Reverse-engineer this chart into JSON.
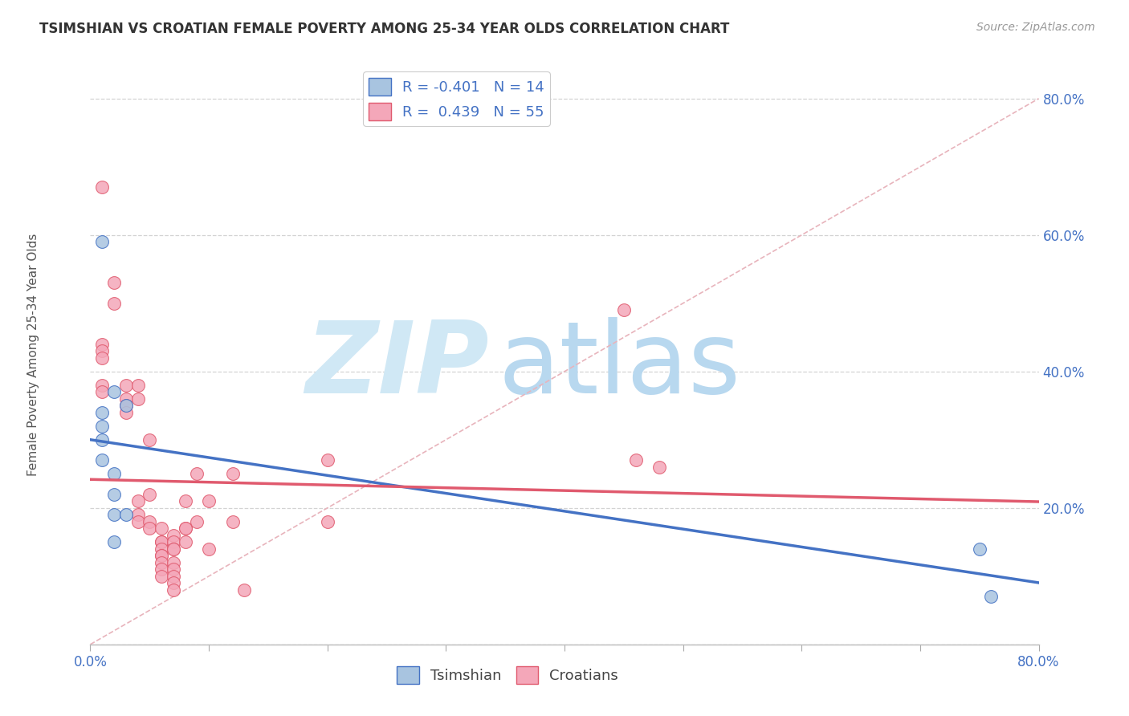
{
  "title": "TSIMSHIAN VS CROATIAN FEMALE POVERTY AMONG 25-34 YEAR OLDS CORRELATION CHART",
  "source": "Source: ZipAtlas.com",
  "ylabel_label": "Female Poverty Among 25-34 Year Olds",
  "tsimshian_r": -0.401,
  "tsimshian_n": 14,
  "croatian_r": 0.439,
  "croatian_n": 55,
  "xlim": [
    0.0,
    0.8
  ],
  "ylim": [
    0.0,
    0.85
  ],
  "xticks": [
    0.0,
    0.1,
    0.2,
    0.3,
    0.4,
    0.5,
    0.6,
    0.7,
    0.8
  ],
  "yticks": [
    0.0,
    0.2,
    0.4,
    0.6,
    0.8
  ],
  "tsimshian_color": "#a8c4e0",
  "croatian_color": "#f4a7b9",
  "tsimshian_line_color": "#4472c4",
  "croatian_line_color": "#e05a6e",
  "diagonal_color": "#c8c8c8",
  "tsimshian_points": [
    [
      0.01,
      0.59
    ],
    [
      0.01,
      0.34
    ],
    [
      0.01,
      0.32
    ],
    [
      0.01,
      0.3
    ],
    [
      0.01,
      0.27
    ],
    [
      0.02,
      0.37
    ],
    [
      0.02,
      0.25
    ],
    [
      0.02,
      0.22
    ],
    [
      0.02,
      0.19
    ],
    [
      0.02,
      0.15
    ],
    [
      0.03,
      0.35
    ],
    [
      0.03,
      0.19
    ],
    [
      0.75,
      0.14
    ],
    [
      0.76,
      0.07
    ]
  ],
  "croatian_points": [
    [
      0.01,
      0.67
    ],
    [
      0.02,
      0.53
    ],
    [
      0.02,
      0.5
    ],
    [
      0.01,
      0.44
    ],
    [
      0.01,
      0.43
    ],
    [
      0.01,
      0.42
    ],
    [
      0.01,
      0.38
    ],
    [
      0.01,
      0.37
    ],
    [
      0.03,
      0.38
    ],
    [
      0.03,
      0.36
    ],
    [
      0.03,
      0.35
    ],
    [
      0.03,
      0.34
    ],
    [
      0.04,
      0.38
    ],
    [
      0.04,
      0.36
    ],
    [
      0.04,
      0.21
    ],
    [
      0.04,
      0.19
    ],
    [
      0.04,
      0.18
    ],
    [
      0.05,
      0.3
    ],
    [
      0.05,
      0.22
    ],
    [
      0.05,
      0.18
    ],
    [
      0.05,
      0.17
    ],
    [
      0.06,
      0.17
    ],
    [
      0.06,
      0.15
    ],
    [
      0.06,
      0.15
    ],
    [
      0.06,
      0.14
    ],
    [
      0.06,
      0.13
    ],
    [
      0.06,
      0.13
    ],
    [
      0.06,
      0.12
    ],
    [
      0.06,
      0.11
    ],
    [
      0.06,
      0.1
    ],
    [
      0.07,
      0.16
    ],
    [
      0.07,
      0.15
    ],
    [
      0.07,
      0.14
    ],
    [
      0.07,
      0.14
    ],
    [
      0.07,
      0.12
    ],
    [
      0.07,
      0.11
    ],
    [
      0.07,
      0.1
    ],
    [
      0.07,
      0.09
    ],
    [
      0.07,
      0.08
    ],
    [
      0.08,
      0.21
    ],
    [
      0.08,
      0.17
    ],
    [
      0.08,
      0.17
    ],
    [
      0.08,
      0.15
    ],
    [
      0.09,
      0.25
    ],
    [
      0.09,
      0.18
    ],
    [
      0.1,
      0.21
    ],
    [
      0.1,
      0.14
    ],
    [
      0.12,
      0.25
    ],
    [
      0.12,
      0.18
    ],
    [
      0.13,
      0.08
    ],
    [
      0.2,
      0.27
    ],
    [
      0.2,
      0.18
    ],
    [
      0.45,
      0.49
    ],
    [
      0.46,
      0.27
    ],
    [
      0.48,
      0.26
    ]
  ],
  "watermark_zip": "ZIP",
  "watermark_atlas": "atlas",
  "watermark_color": "#d0e8f5",
  "background_color": "#ffffff",
  "grid_color": "#d3d3d3",
  "tick_label_color": "#4472c4",
  "title_color": "#333333",
  "source_color": "#999999",
  "ylabel_color": "#555555"
}
